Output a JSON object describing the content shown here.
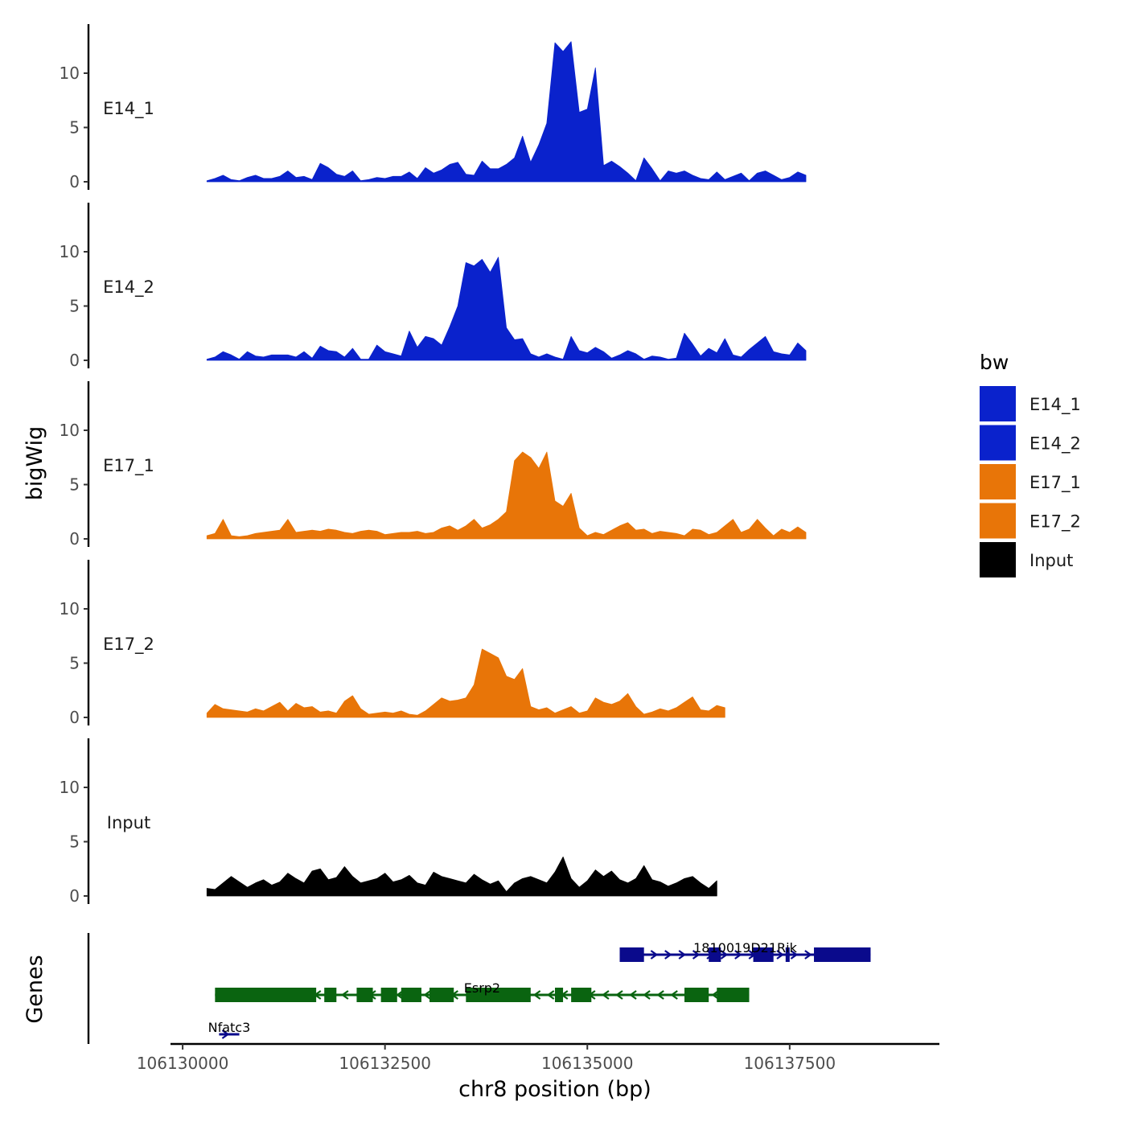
{
  "chart_data": {
    "type": "area",
    "chromosome": "chr8",
    "xlabel": "chr8 position (bp)",
    "ylabel": "bigWig",
    "genes_axis_label": "Genes",
    "xlim": [
      106129850,
      106139350
    ],
    "data_start": 106130300,
    "step": 100,
    "x_ticks": [
      106130000,
      106132500,
      106135000,
      106137500
    ],
    "x_tick_labels": [
      "106130000",
      "106132500",
      "106135000",
      "106137500"
    ],
    "ylim": [
      0,
      14
    ],
    "y_ticks": [
      0,
      5,
      10
    ],
    "y_tick_labels": [
      "0",
      "5",
      "10"
    ],
    "legend": {
      "title": "bw",
      "entries": [
        {
          "label": "E14_1",
          "color": "#0a22cc"
        },
        {
          "label": "E14_2",
          "color": "#0a22cc"
        },
        {
          "label": "E17_1",
          "color": "#e87508"
        },
        {
          "label": "E17_2",
          "color": "#e87508"
        },
        {
          "label": "Input",
          "color": "#000000"
        }
      ]
    },
    "series": [
      {
        "name": "E14_1",
        "color": "#0a22cc",
        "values": [
          0.1,
          0.3,
          0.6,
          0.2,
          0.1,
          0.4,
          0.6,
          0.3,
          0.3,
          0.5,
          1.0,
          0.4,
          0.5,
          0.2,
          1.7,
          1.3,
          0.7,
          0.5,
          1.0,
          0.1,
          0.2,
          0.4,
          0.3,
          0.5,
          0.5,
          0.9,
          0.3,
          1.3,
          0.8,
          1.1,
          1.6,
          1.8,
          0.7,
          0.6,
          1.9,
          1.2,
          1.2,
          1.6,
          2.2,
          4.2,
          1.8,
          3.4,
          5.4,
          12.8,
          12.0,
          12.9,
          6.4,
          6.7,
          10.5,
          1.5,
          1.9,
          1.4,
          0.8,
          0.1,
          2.2,
          1.2,
          0.1,
          1.0,
          0.8,
          1.0,
          0.6,
          0.3,
          0.2,
          0.9,
          0.2,
          0.5,
          0.8,
          0.1,
          0.8,
          1.0,
          0.6,
          0.2,
          0.4,
          0.9,
          0.6
        ]
      },
      {
        "name": "E14_2",
        "color": "#0a22cc",
        "values": [
          0.1,
          0.3,
          0.8,
          0.5,
          0.1,
          0.8,
          0.4,
          0.3,
          0.5,
          0.5,
          0.5,
          0.3,
          0.8,
          0.2,
          1.3,
          0.9,
          0.8,
          0.3,
          1.1,
          0.1,
          0.1,
          1.4,
          0.8,
          0.6,
          0.4,
          2.7,
          1.2,
          2.2,
          2.0,
          1.4,
          3.1,
          5.0,
          9.0,
          8.7,
          9.3,
          8.1,
          9.5,
          3.0,
          1.9,
          2.0,
          0.6,
          0.3,
          0.6,
          0.3,
          0.1,
          2.2,
          0.9,
          0.7,
          1.2,
          0.8,
          0.2,
          0.5,
          0.9,
          0.6,
          0.1,
          0.4,
          0.3,
          0.1,
          0.2,
          2.5,
          1.5,
          0.4,
          1.1,
          0.7,
          2.0,
          0.5,
          0.3,
          1.0,
          1.6,
          2.2,
          0.8,
          0.6,
          0.5,
          1.6,
          0.9
        ]
      },
      {
        "name": "E17_1",
        "color": "#e87508",
        "values": [
          0.3,
          0.5,
          1.8,
          0.3,
          0.2,
          0.3,
          0.5,
          0.6,
          0.7,
          0.8,
          1.8,
          0.6,
          0.7,
          0.8,
          0.7,
          0.9,
          0.8,
          0.6,
          0.5,
          0.7,
          0.8,
          0.7,
          0.4,
          0.5,
          0.6,
          0.6,
          0.7,
          0.5,
          0.6,
          1.0,
          1.2,
          0.8,
          1.2,
          1.8,
          1.0,
          1.3,
          1.8,
          2.5,
          7.2,
          8.0,
          7.5,
          6.5,
          8.0,
          3.5,
          3.0,
          4.2,
          1.0,
          0.3,
          0.6,
          0.4,
          0.8,
          1.2,
          1.5,
          0.8,
          0.9,
          0.5,
          0.7,
          0.6,
          0.5,
          0.3,
          0.9,
          0.8,
          0.4,
          0.6,
          1.2,
          1.8,
          0.6,
          0.9,
          1.8,
          1.0,
          0.3,
          0.9,
          0.6,
          1.1,
          0.6
        ]
      },
      {
        "name": "E17_2",
        "color": "#e87508",
        "values": [
          0.4,
          1.2,
          0.8,
          0.7,
          0.6,
          0.5,
          0.8,
          0.6,
          1.0,
          1.4,
          0.6,
          1.3,
          0.9,
          1.0,
          0.5,
          0.6,
          0.4,
          1.5,
          2.0,
          0.8,
          0.3,
          0.4,
          0.5,
          0.4,
          0.6,
          0.3,
          0.2,
          0.6,
          1.2,
          1.8,
          1.5,
          1.6,
          1.8,
          3.0,
          6.3,
          5.9,
          5.5,
          3.8,
          3.5,
          4.5,
          1.0,
          0.7,
          0.9,
          0.4,
          0.7,
          1.0,
          0.4,
          0.6,
          1.8,
          1.4,
          1.2,
          1.5,
          2.2,
          1.0,
          0.3,
          0.5,
          0.8,
          0.6,
          0.9,
          1.4,
          1.9,
          0.7,
          0.6,
          1.1,
          0.9
        ]
      },
      {
        "name": "Input",
        "color": "#000000",
        "values": [
          0.7,
          0.6,
          1.2,
          1.8,
          1.3,
          0.8,
          1.2,
          1.5,
          1.0,
          1.3,
          2.1,
          1.6,
          1.2,
          2.3,
          2.5,
          1.5,
          1.7,
          2.7,
          1.8,
          1.2,
          1.4,
          1.6,
          2.1,
          1.3,
          1.5,
          1.9,
          1.2,
          1.0,
          2.2,
          1.8,
          1.6,
          1.4,
          1.2,
          2.0,
          1.5,
          1.1,
          1.4,
          0.4,
          1.2,
          1.6,
          1.8,
          1.5,
          1.2,
          2.2,
          3.6,
          1.6,
          0.8,
          1.4,
          2.4,
          1.8,
          2.3,
          1.5,
          1.2,
          1.6,
          2.8,
          1.5,
          1.3,
          0.9,
          1.2,
          1.6,
          1.8,
          1.2,
          0.7,
          1.4
        ]
      }
    ],
    "genes": [
      {
        "name": "1810019D21Rik",
        "row": 1,
        "strand": "+",
        "color": "#0a0a8c",
        "start": 106135400,
        "end": 106138500,
        "exons": [
          [
            106135400,
            106135700
          ],
          [
            106136500,
            106136650
          ],
          [
            106137050,
            106137300
          ],
          [
            106137450,
            106137500
          ],
          [
            106137800,
            106138500
          ]
        ]
      },
      {
        "name": "Esrp2",
        "row": 2,
        "strand": "-",
        "color": "#0a6410",
        "start": 106130400,
        "end": 106137000,
        "exons": [
          [
            106130400,
            106131650
          ],
          [
            106131750,
            106131900
          ],
          [
            106132150,
            106132350
          ],
          [
            106132450,
            106132650
          ],
          [
            106132700,
            106132950
          ],
          [
            106133050,
            106133350
          ],
          [
            106133500,
            106134300
          ],
          [
            106134600,
            106134700
          ],
          [
            106134800,
            106135050
          ],
          [
            106136200,
            106136500
          ],
          [
            106136600,
            106137000
          ]
        ]
      },
      {
        "name": "Nfatc3",
        "row": 3,
        "strand": "+",
        "color": "#0a0a8c",
        "start": 106130450,
        "end": 106130700,
        "exons": []
      }
    ]
  }
}
